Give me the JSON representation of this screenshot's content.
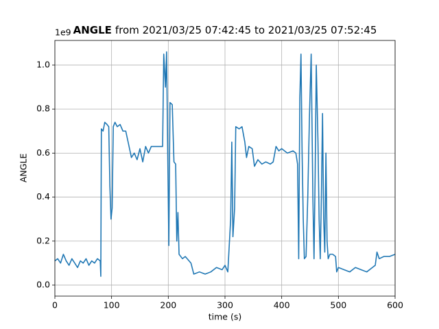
{
  "chart_data": {
    "type": "line",
    "title_parts": [
      "ANGLE",
      "from 2021/03/25 07:42:45 to 2021/03/25 07:52:45"
    ],
    "x_label": "time (s)",
    "y_label": "ANGLE",
    "y_offset_text": "1e9",
    "xlim": [
      0,
      600
    ],
    "ylim": [
      -0.05,
      1.112
    ],
    "xticks": [
      0,
      100,
      200,
      300,
      400,
      500,
      600
    ],
    "yticks": [
      {
        "value": 0,
        "label": "0.0"
      },
      0.2,
      0.4,
      0.6,
      0.8,
      {
        "value": 1,
        "label": "1.0"
      }
    ],
    "grid": true,
    "x": [
      0,
      5,
      10,
      15,
      20,
      25,
      30,
      35,
      40,
      45,
      50,
      55,
      60,
      65,
      70,
      75,
      80,
      81,
      82,
      85,
      88,
      92,
      95,
      97,
      99,
      101,
      103,
      106,
      110,
      115,
      120,
      125,
      130,
      135,
      140,
      145,
      150,
      155,
      160,
      165,
      170,
      180,
      190,
      192,
      195,
      197,
      199,
      201,
      203,
      207,
      210,
      213,
      215,
      217,
      219,
      225,
      230,
      240,
      245,
      255,
      265,
      275,
      285,
      295,
      300,
      305,
      310,
      312,
      314,
      317,
      319,
      325,
      330,
      335,
      338,
      342,
      348,
      352,
      358,
      365,
      372,
      380,
      385,
      390,
      395,
      400,
      410,
      420,
      425,
      428,
      430,
      432,
      434,
      436,
      438,
      440,
      443,
      446,
      449,
      452,
      455,
      457,
      459,
      461,
      464,
      466,
      468,
      470,
      472,
      474,
      476,
      478,
      480,
      482,
      485,
      490,
      495,
      497,
      500,
      510,
      520,
      530,
      540,
      550,
      560,
      565,
      568,
      572,
      580,
      590,
      600
    ],
    "series": [
      {
        "name": "ANGLE",
        "color": "#1f77b4",
        "values": [
          0.11,
          0.12,
          0.1,
          0.14,
          0.11,
          0.09,
          0.12,
          0.1,
          0.08,
          0.11,
          0.1,
          0.12,
          0.09,
          0.11,
          0.1,
          0.12,
          0.11,
          0.04,
          0.71,
          0.7,
          0.74,
          0.73,
          0.72,
          0.45,
          0.3,
          0.35,
          0.72,
          0.74,
          0.72,
          0.73,
          0.7,
          0.7,
          0.64,
          0.58,
          0.6,
          0.57,
          0.62,
          0.56,
          0.63,
          0.6,
          0.63,
          0.63,
          0.63,
          1.05,
          0.9,
          1.06,
          0.6,
          0.18,
          0.83,
          0.82,
          0.56,
          0.55,
          0.2,
          0.33,
          0.14,
          0.12,
          0.13,
          0.1,
          0.05,
          0.06,
          0.05,
          0.06,
          0.08,
          0.07,
          0.09,
          0.06,
          0.3,
          0.65,
          0.22,
          0.35,
          0.72,
          0.71,
          0.72,
          0.65,
          0.58,
          0.63,
          0.62,
          0.54,
          0.57,
          0.55,
          0.56,
          0.55,
          0.56,
          0.63,
          0.61,
          0.62,
          0.6,
          0.61,
          0.6,
          0.55,
          0.12,
          0.85,
          1.05,
          0.6,
          0.3,
          0.12,
          0.13,
          0.4,
          0.77,
          1.05,
          0.4,
          0.12,
          0.5,
          1.0,
          0.65,
          0.3,
          0.12,
          0.4,
          0.78,
          0.3,
          0.15,
          0.6,
          0.2,
          0.12,
          0.14,
          0.14,
          0.13,
          0.06,
          0.08,
          0.07,
          0.06,
          0.08,
          0.07,
          0.06,
          0.08,
          0.09,
          0.15,
          0.12,
          0.13,
          0.13,
          0.14
        ]
      }
    ]
  }
}
